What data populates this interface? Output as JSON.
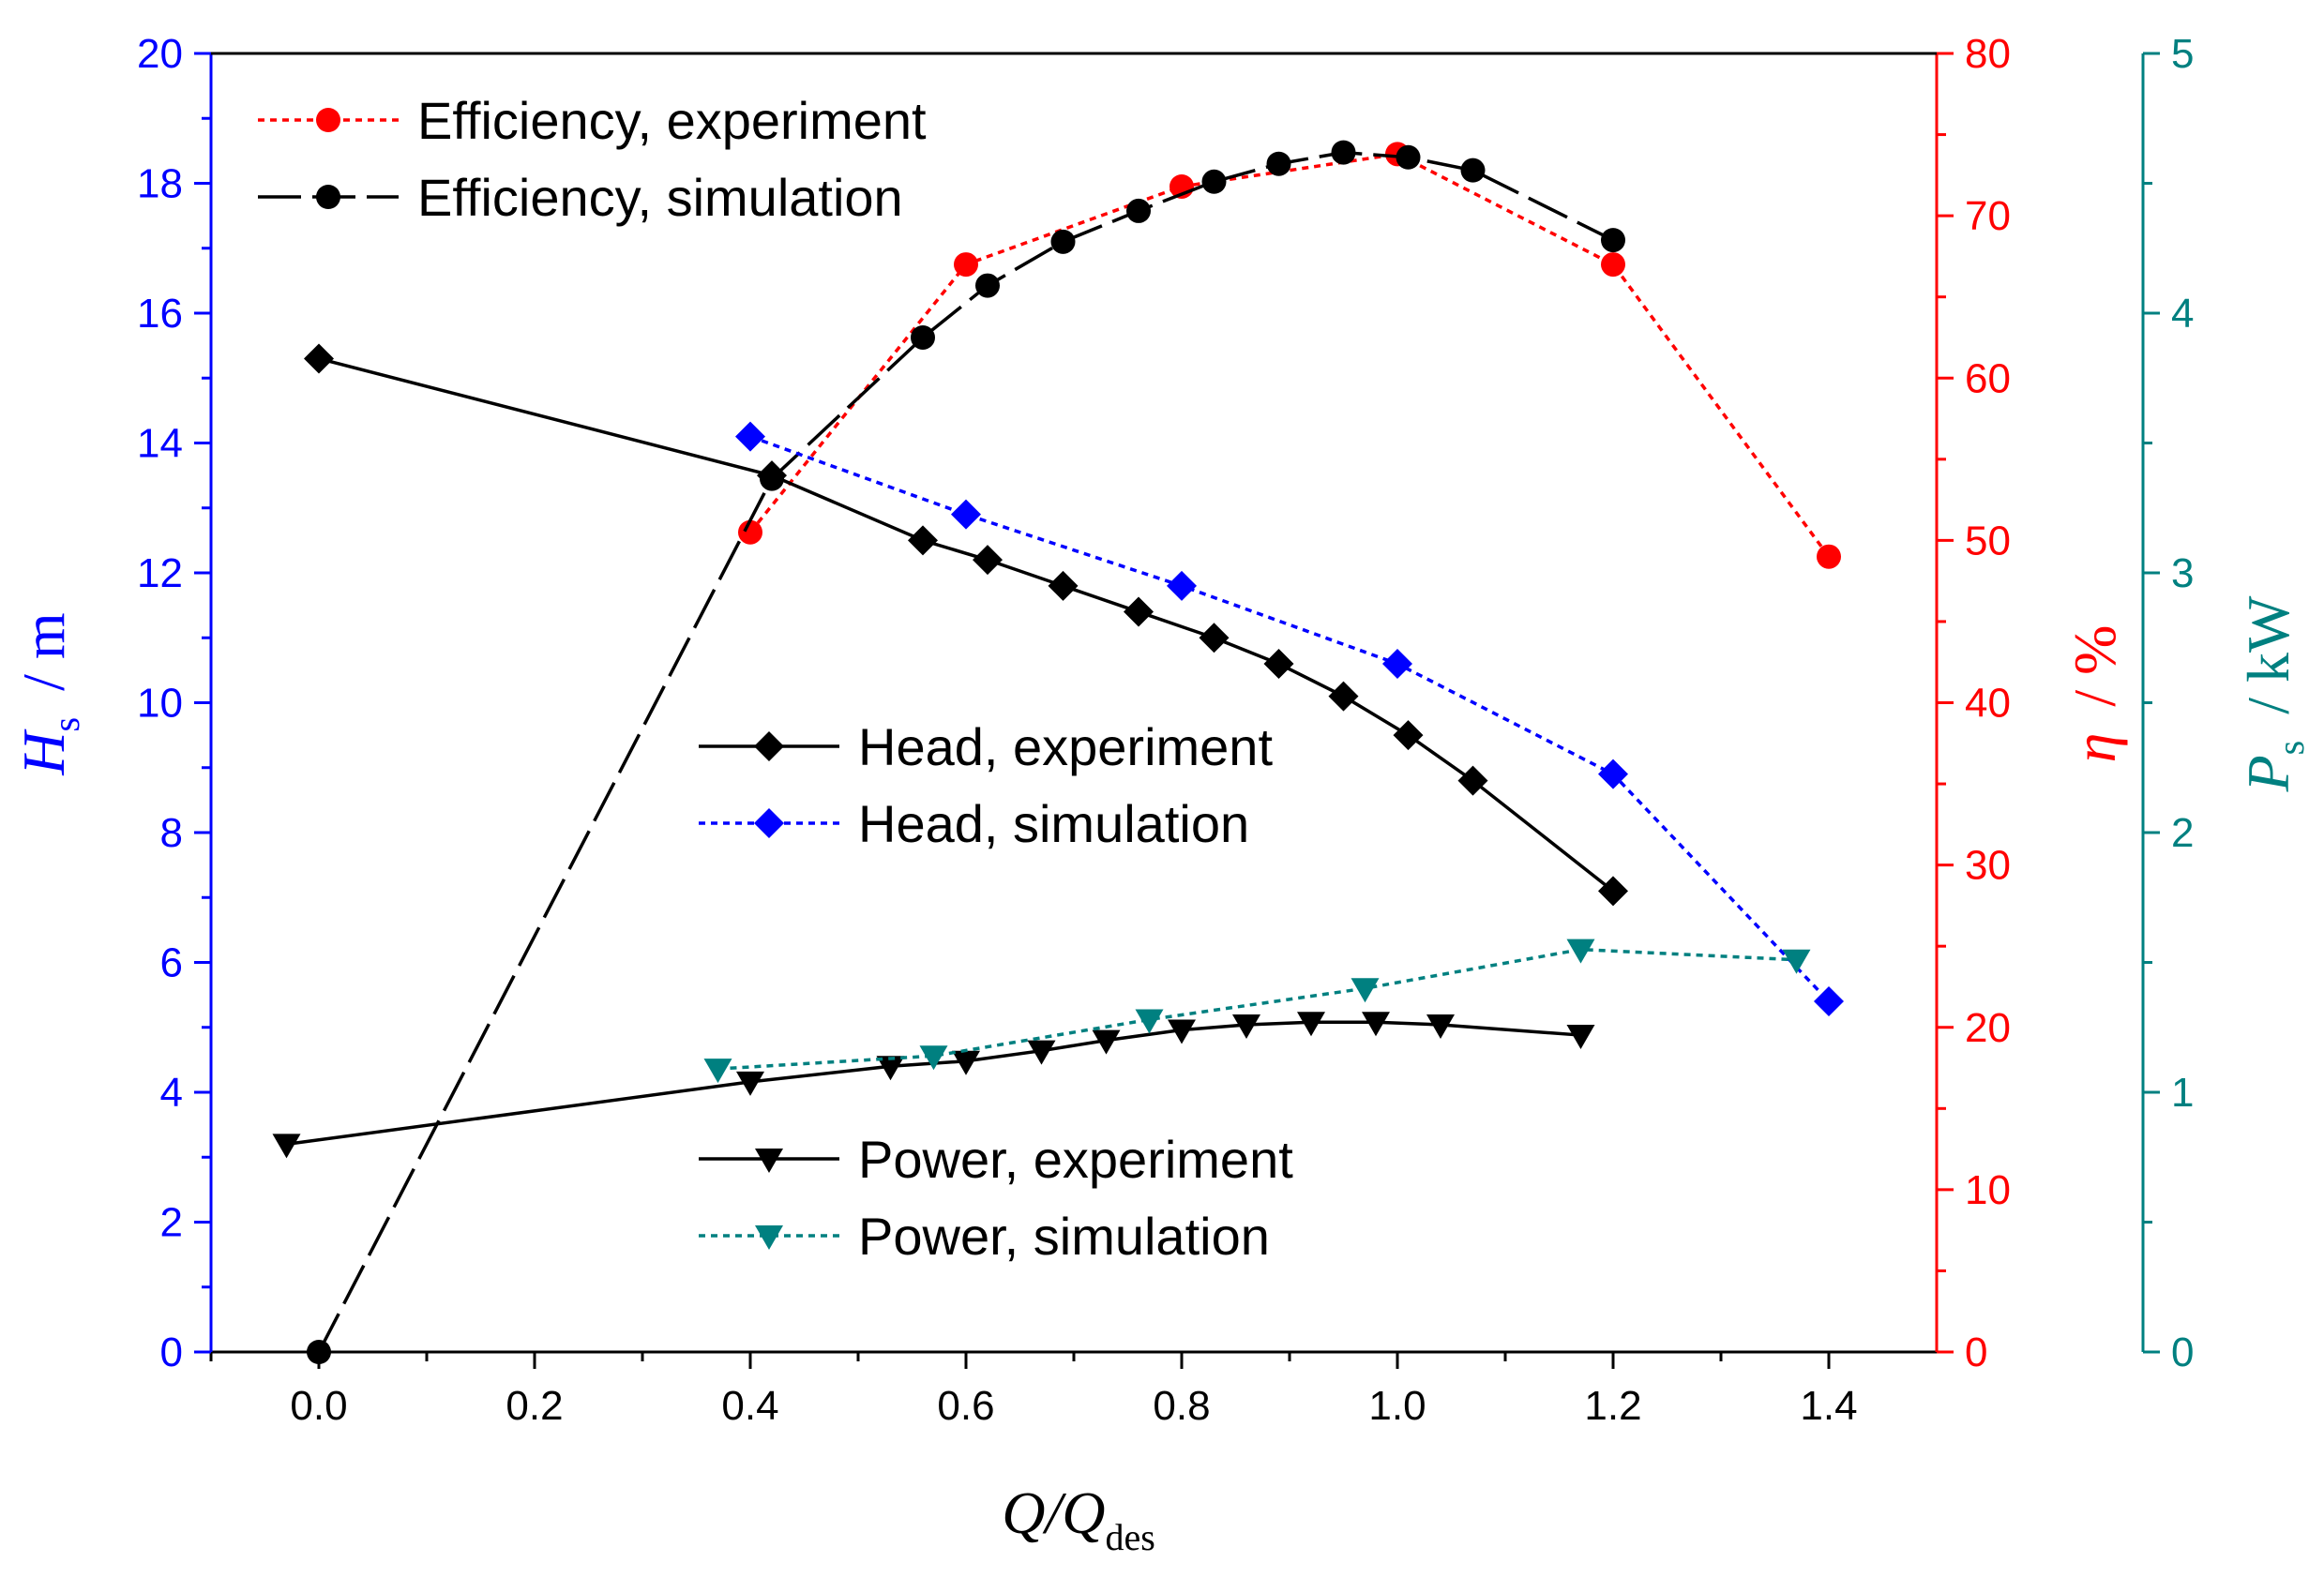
{
  "chart_data": {
    "type": "line",
    "x_axis": {
      "label_main": "Q/Q",
      "label_sub": "des",
      "range": [
        -0.1,
        1.5
      ],
      "ticks": [
        0.0,
        0.2,
        0.4,
        0.6,
        0.8,
        1.0,
        1.2,
        1.4
      ],
      "tick_labels": [
        "0.0",
        "0.2",
        "0.4",
        "0.6",
        "0.8",
        "1.0",
        "1.2",
        "1.4"
      ]
    },
    "y_axes": [
      {
        "id": "head",
        "side": "left",
        "label_main": "H",
        "label_sub": "s",
        "label_unit": "/ m",
        "range": [
          0,
          20
        ],
        "ticks": [
          0,
          2,
          4,
          6,
          8,
          10,
          12,
          14,
          16,
          18,
          20
        ],
        "tick_labels": [
          "0",
          "2",
          "4",
          "6",
          "8",
          "10",
          "12",
          "14",
          "16",
          "18",
          "20"
        ],
        "color": "#0000ff"
      },
      {
        "id": "efficiency",
        "side": "right-inner",
        "label_main": "η",
        "label_unit": "/ %",
        "range": [
          0,
          80
        ],
        "ticks": [
          0,
          10,
          20,
          30,
          40,
          50,
          60,
          70,
          80
        ],
        "tick_labels": [
          "0",
          "10",
          "20",
          "30",
          "40",
          "50",
          "60",
          "70",
          "80"
        ],
        "color": "#ff0000"
      },
      {
        "id": "power",
        "side": "right-outer",
        "label_main": "P",
        "label_sub": "s",
        "label_unit": "/ kW",
        "range": [
          0,
          5
        ],
        "ticks": [
          0,
          1,
          2,
          3,
          4,
          5
        ],
        "tick_labels": [
          "0",
          "1",
          "2",
          "3",
          "4",
          "5"
        ],
        "color": "#008080"
      }
    ],
    "series": [
      {
        "name": "Efficiency, experiment",
        "axis": "efficiency",
        "color": "#ff0000",
        "line": "dotted",
        "marker": "circle",
        "x": [
          0.4,
          0.6,
          0.8,
          1.0,
          1.2,
          1.4
        ],
        "y": [
          50.5,
          67.0,
          71.8,
          73.8,
          67.0,
          49.0
        ]
      },
      {
        "name": "Efficiency, simulation",
        "axis": "efficiency",
        "color": "#000000",
        "line": "dashed",
        "marker": "circle",
        "x": [
          0.0,
          0.42,
          0.56,
          0.62,
          0.69,
          0.76,
          0.83,
          0.89,
          0.95,
          1.01,
          1.07,
          1.2
        ],
        "y": [
          0.0,
          53.8,
          62.5,
          65.7,
          68.4,
          70.3,
          72.1,
          73.2,
          73.9,
          73.6,
          72.8,
          68.5
        ]
      },
      {
        "name": "Head, experiment",
        "axis": "head",
        "color": "#000000",
        "line": "solid",
        "marker": "diamond",
        "x": [
          0.0,
          0.42,
          0.56,
          0.62,
          0.69,
          0.76,
          0.83,
          0.89,
          0.95,
          1.01,
          1.07,
          1.2
        ],
        "y": [
          15.3,
          13.5,
          12.5,
          12.2,
          11.8,
          11.4,
          11.0,
          10.6,
          10.1,
          9.5,
          8.8,
          7.1
        ]
      },
      {
        "name": "Head, simulation",
        "axis": "head",
        "color": "#0000ff",
        "line": "dotted",
        "marker": "diamond",
        "x": [
          0.4,
          0.6,
          0.8,
          1.0,
          1.2,
          1.4
        ],
        "y": [
          14.1,
          12.9,
          11.8,
          10.6,
          8.9,
          5.4
        ]
      },
      {
        "name": "Power, experiment",
        "axis": "power",
        "color": "#000000",
        "line": "solid",
        "marker": "triangle-down",
        "x": [
          -0.03,
          0.4,
          0.53,
          0.6,
          0.67,
          0.73,
          0.8,
          0.86,
          0.92,
          0.98,
          1.04,
          1.17
        ],
        "y": [
          0.8,
          1.04,
          1.1,
          1.12,
          1.16,
          1.2,
          1.24,
          1.26,
          1.27,
          1.27,
          1.26,
          1.22
        ]
      },
      {
        "name": "Power, simulation",
        "axis": "power",
        "color": "#008080",
        "line": "dotted",
        "marker": "triangle-down",
        "x": [
          0.37,
          0.57,
          0.77,
          0.97,
          1.17,
          1.37
        ],
        "y": [
          1.09,
          1.14,
          1.28,
          1.4,
          1.55,
          1.51
        ]
      }
    ],
    "legend": {
      "groups": [
        {
          "placement": "top-left",
          "entries": [
            "Efficiency, experiment",
            "Efficiency, simulation"
          ]
        },
        {
          "placement": "middle-center",
          "entries": [
            "Head, experiment",
            "Head, simulation"
          ]
        },
        {
          "placement": "bottom-center",
          "entries": [
            "Power, experiment",
            "Power, simulation"
          ]
        }
      ]
    }
  }
}
